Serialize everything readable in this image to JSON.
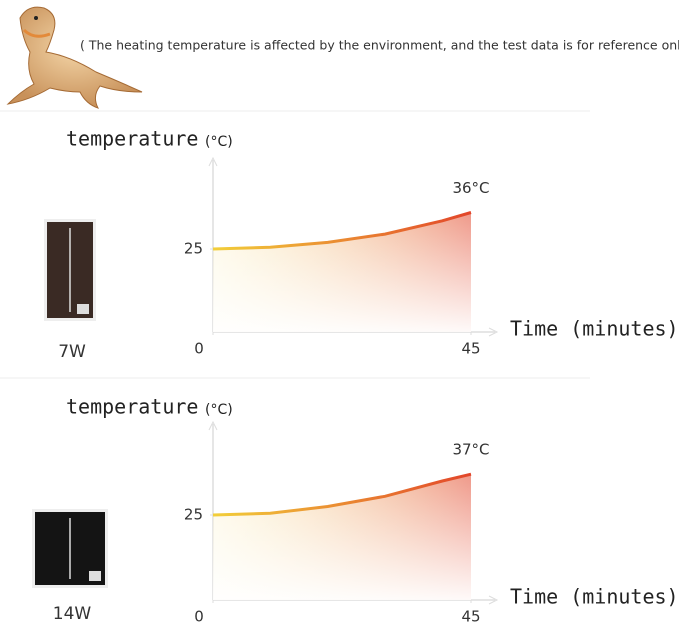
{
  "note": "( The heating temperature is affected by the environment, and the test data is for reference only. )",
  "chart_data": [
    {
      "type": "line",
      "product": "7W",
      "y_label": "temperature",
      "y_unit": "(°C)",
      "x_label": "Time (minutes)",
      "x": [
        0,
        10,
        20,
        30,
        40,
        45
      ],
      "xlim": [
        0,
        45
      ],
      "xticks": [
        0,
        45
      ],
      "series": [
        {
          "values": [
            25,
            25.5,
            27,
            29.5,
            33.5,
            36
          ],
          "value_labels": [
            null,
            null,
            null,
            null,
            null,
            "36°C"
          ]
        }
      ],
      "ylim": [
        0,
        50
      ],
      "yticks": [
        25
      ],
      "gradient": [
        "#f2cf3a",
        "#e2452a"
      ],
      "product_color": "#3a2a24"
    },
    {
      "type": "line",
      "product": "14W",
      "y_label": "temperature",
      "y_unit": "(°C)",
      "x_label": "Time (minutes)",
      "x": [
        0,
        10,
        20,
        30,
        40,
        45
      ],
      "xlim": [
        0,
        45
      ],
      "xticks": [
        0,
        45
      ],
      "series": [
        {
          "values": [
            25,
            25.5,
            27.5,
            30.5,
            35,
            37
          ],
          "value_labels": [
            null,
            null,
            null,
            null,
            null,
            "37°C"
          ]
        }
      ],
      "ylim": [
        0,
        50
      ],
      "yticks": [
        25
      ],
      "gradient": [
        "#f2cf3a",
        "#e2452a"
      ],
      "product_color": "#141414"
    }
  ]
}
